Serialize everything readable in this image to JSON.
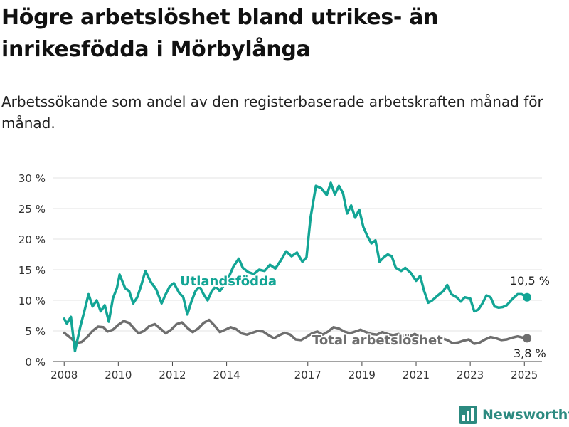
{
  "header": {
    "title": "Högre arbetslöshet bland utrikes- än inrikesfödda i Mörbylånga",
    "subtitle": "Arbetssökande som andel av den registerbaserade arbetskraften månad för månad."
  },
  "brand": {
    "name": "Newsworthy",
    "icon": "bar-chart-logo-icon"
  },
  "colors": {
    "foreign": "#13a595",
    "total": "#6e6e6e",
    "axis": "#444444",
    "grid": "#e3e3e3",
    "brand": "#2c8a80"
  },
  "chart_data": {
    "type": "line",
    "xlabel": "",
    "ylabel": "",
    "ylim": [
      0,
      30
    ],
    "yticks": [
      0,
      5,
      10,
      15,
      20,
      25,
      30
    ],
    "ytick_labels": [
      "0 %",
      "5 %",
      "10 %",
      "15 %",
      "20 %",
      "25 %",
      "30 %"
    ],
    "xticks": [
      2008,
      2010,
      2012,
      2014,
      2017,
      2019,
      2021,
      2023,
      2025
    ],
    "xtick_labels": [
      "2008",
      "2010",
      "2012",
      "2014",
      "2017",
      "2019",
      "2021",
      "2023",
      "2025"
    ],
    "grid": "horizontal",
    "legend": "inline labels",
    "series": [
      {
        "name": "Utlandsfödda",
        "last_label": "10,5 %",
        "last_value": 10.5,
        "points": [
          [
            2008.0,
            7.0
          ],
          [
            2008.1,
            6.2
          ],
          [
            2008.25,
            7.3
          ],
          [
            2008.4,
            1.7
          ],
          [
            2008.6,
            5.8
          ],
          [
            2008.75,
            8.3
          ],
          [
            2008.9,
            11.0
          ],
          [
            2009.05,
            9.0
          ],
          [
            2009.2,
            10.0
          ],
          [
            2009.35,
            8.2
          ],
          [
            2009.5,
            9.2
          ],
          [
            2009.65,
            6.5
          ],
          [
            2009.8,
            10.3
          ],
          [
            2009.95,
            12.0
          ],
          [
            2010.05,
            14.2
          ],
          [
            2010.25,
            12.0
          ],
          [
            2010.4,
            11.5
          ],
          [
            2010.55,
            9.5
          ],
          [
            2010.7,
            10.5
          ],
          [
            2010.85,
            12.5
          ],
          [
            2011.0,
            14.8
          ],
          [
            2011.2,
            13.0
          ],
          [
            2011.4,
            11.8
          ],
          [
            2011.6,
            9.5
          ],
          [
            2011.75,
            11.0
          ],
          [
            2011.9,
            12.3
          ],
          [
            2012.05,
            12.8
          ],
          [
            2012.25,
            11.2
          ],
          [
            2012.4,
            10.5
          ],
          [
            2012.55,
            7.7
          ],
          [
            2012.7,
            9.8
          ],
          [
            2012.85,
            11.5
          ],
          [
            2013.0,
            12.3
          ],
          [
            2013.15,
            11.0
          ],
          [
            2013.3,
            10.0
          ],
          [
            2013.45,
            11.5
          ],
          [
            2013.6,
            12.3
          ],
          [
            2013.75,
            11.5
          ],
          [
            2013.9,
            12.5
          ],
          [
            2014.05,
            13.5
          ],
          [
            2014.25,
            15.5
          ],
          [
            2014.45,
            16.8
          ],
          [
            2014.6,
            15.3
          ],
          [
            2014.8,
            14.6
          ],
          [
            2015.0,
            14.3
          ],
          [
            2015.2,
            15.0
          ],
          [
            2015.4,
            14.8
          ],
          [
            2015.6,
            15.8
          ],
          [
            2015.8,
            15.2
          ],
          [
            2016.0,
            16.5
          ],
          [
            2016.2,
            18.0
          ],
          [
            2016.4,
            17.2
          ],
          [
            2016.6,
            17.8
          ],
          [
            2016.8,
            16.3
          ],
          [
            2016.95,
            17.0
          ],
          [
            2017.1,
            23.5
          ],
          [
            2017.3,
            28.7
          ],
          [
            2017.5,
            28.3
          ],
          [
            2017.7,
            27.2
          ],
          [
            2017.85,
            29.2
          ],
          [
            2018.0,
            27.3
          ],
          [
            2018.15,
            28.7
          ],
          [
            2018.3,
            27.5
          ],
          [
            2018.45,
            24.2
          ],
          [
            2018.6,
            25.5
          ],
          [
            2018.75,
            23.5
          ],
          [
            2018.9,
            24.8
          ],
          [
            2019.05,
            22.0
          ],
          [
            2019.2,
            20.5
          ],
          [
            2019.35,
            19.3
          ],
          [
            2019.5,
            19.8
          ],
          [
            2019.65,
            16.3
          ],
          [
            2019.8,
            17.0
          ],
          [
            2019.95,
            17.5
          ],
          [
            2020.1,
            17.2
          ],
          [
            2020.25,
            15.3
          ],
          [
            2020.45,
            14.8
          ],
          [
            2020.6,
            15.3
          ],
          [
            2020.8,
            14.5
          ],
          [
            2021.0,
            13.2
          ],
          [
            2021.15,
            14.0
          ],
          [
            2021.3,
            11.5
          ],
          [
            2021.45,
            9.6
          ],
          [
            2021.6,
            10.0
          ],
          [
            2021.8,
            10.8
          ],
          [
            2022.0,
            11.5
          ],
          [
            2022.15,
            12.5
          ],
          [
            2022.3,
            11.0
          ],
          [
            2022.5,
            10.5
          ],
          [
            2022.65,
            9.8
          ],
          [
            2022.8,
            10.5
          ],
          [
            2023.0,
            10.3
          ],
          [
            2023.15,
            8.2
          ],
          [
            2023.3,
            8.5
          ],
          [
            2023.45,
            9.5
          ],
          [
            2023.6,
            10.8
          ],
          [
            2023.75,
            10.5
          ],
          [
            2023.9,
            9.0
          ],
          [
            2024.05,
            8.8
          ],
          [
            2024.2,
            8.9
          ],
          [
            2024.35,
            9.2
          ],
          [
            2024.55,
            10.2
          ],
          [
            2024.75,
            11.0
          ],
          [
            2024.9,
            11.0
          ],
          [
            2025.1,
            10.5
          ]
        ]
      },
      {
        "name": "Total arbetslöshet",
        "last_label": "3,8 %",
        "last_value": 3.8,
        "points": [
          [
            2008.0,
            4.7
          ],
          [
            2008.2,
            4.0
          ],
          [
            2008.45,
            3.0
          ],
          [
            2008.65,
            3.2
          ],
          [
            2008.85,
            4.0
          ],
          [
            2009.05,
            5.0
          ],
          [
            2009.25,
            5.7
          ],
          [
            2009.45,
            5.6
          ],
          [
            2009.6,
            4.9
          ],
          [
            2009.8,
            5.2
          ],
          [
            2010.0,
            6.0
          ],
          [
            2010.2,
            6.6
          ],
          [
            2010.4,
            6.3
          ],
          [
            2010.6,
            5.3
          ],
          [
            2010.75,
            4.6
          ],
          [
            2010.95,
            5.0
          ],
          [
            2011.15,
            5.8
          ],
          [
            2011.35,
            6.1
          ],
          [
            2011.55,
            5.4
          ],
          [
            2011.75,
            4.6
          ],
          [
            2011.95,
            5.2
          ],
          [
            2012.15,
            6.1
          ],
          [
            2012.35,
            6.4
          ],
          [
            2012.55,
            5.5
          ],
          [
            2012.75,
            4.8
          ],
          [
            2012.95,
            5.4
          ],
          [
            2013.15,
            6.3
          ],
          [
            2013.35,
            6.8
          ],
          [
            2013.55,
            5.9
          ],
          [
            2013.75,
            4.8
          ],
          [
            2013.95,
            5.2
          ],
          [
            2014.15,
            5.6
          ],
          [
            2014.35,
            5.3
          ],
          [
            2014.55,
            4.6
          ],
          [
            2014.75,
            4.4
          ],
          [
            2014.95,
            4.7
          ],
          [
            2015.15,
            5.0
          ],
          [
            2015.35,
            4.9
          ],
          [
            2015.55,
            4.3
          ],
          [
            2015.75,
            3.8
          ],
          [
            2015.95,
            4.3
          ],
          [
            2016.15,
            4.7
          ],
          [
            2016.35,
            4.4
          ],
          [
            2016.55,
            3.6
          ],
          [
            2016.75,
            3.5
          ],
          [
            2016.95,
            4.0
          ],
          [
            2017.15,
            4.6
          ],
          [
            2017.35,
            4.9
          ],
          [
            2017.55,
            4.4
          ],
          [
            2017.75,
            4.9
          ],
          [
            2017.95,
            5.6
          ],
          [
            2018.15,
            5.4
          ],
          [
            2018.35,
            4.9
          ],
          [
            2018.55,
            4.6
          ],
          [
            2018.75,
            4.9
          ],
          [
            2018.95,
            5.2
          ],
          [
            2019.15,
            4.8
          ],
          [
            2019.35,
            4.5
          ],
          [
            2019.55,
            4.4
          ],
          [
            2019.75,
            4.8
          ],
          [
            2019.95,
            4.5
          ],
          [
            2020.15,
            4.3
          ],
          [
            2020.35,
            4.5
          ],
          [
            2020.55,
            4.2
          ],
          [
            2020.75,
            4.1
          ],
          [
            2020.95,
            4.5
          ],
          [
            2021.15,
            4.0
          ],
          [
            2021.35,
            3.6
          ],
          [
            2021.55,
            3.4
          ],
          [
            2021.75,
            3.6
          ],
          [
            2021.95,
            3.8
          ],
          [
            2022.15,
            3.5
          ],
          [
            2022.35,
            3.0
          ],
          [
            2022.55,
            3.1
          ],
          [
            2022.75,
            3.4
          ],
          [
            2022.95,
            3.6
          ],
          [
            2023.15,
            2.9
          ],
          [
            2023.35,
            3.1
          ],
          [
            2023.55,
            3.6
          ],
          [
            2023.75,
            4.0
          ],
          [
            2023.95,
            3.8
          ],
          [
            2024.15,
            3.5
          ],
          [
            2024.35,
            3.6
          ],
          [
            2024.55,
            3.9
          ],
          [
            2024.75,
            4.1
          ],
          [
            2024.95,
            3.9
          ],
          [
            2025.1,
            3.8
          ]
        ]
      }
    ]
  }
}
